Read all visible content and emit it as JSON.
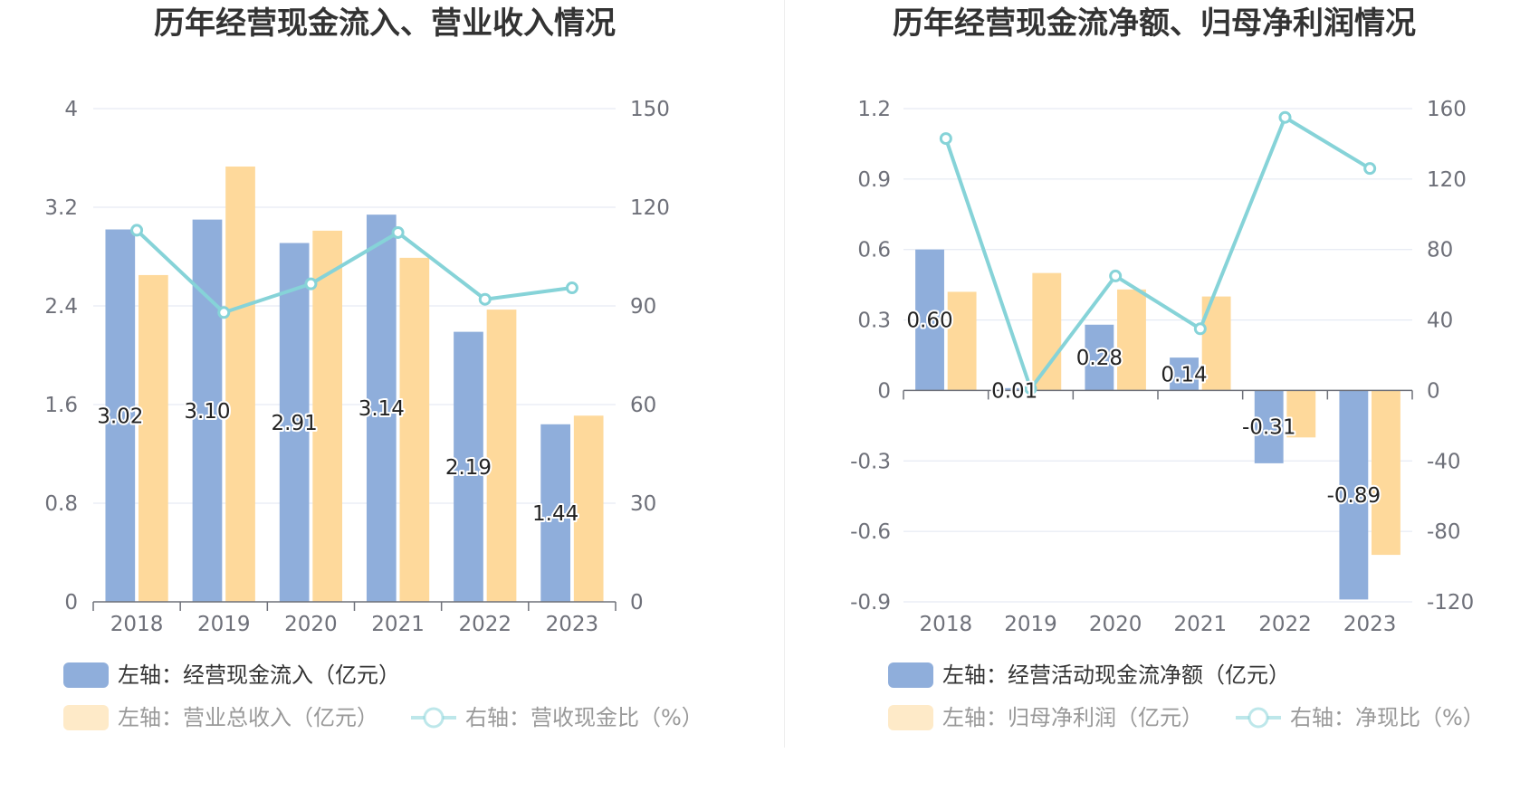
{
  "chart_data": [
    {
      "type": "bar",
      "title": "历年经营现金流入、营业收入情况",
      "categories": [
        "2018",
        "2019",
        "2020",
        "2021",
        "2022",
        "2023"
      ],
      "left_axis": {
        "ylim": [
          0,
          4
        ],
        "ticks": [
          "0",
          "0.8",
          "1.6",
          "2.4",
          "3.2",
          "4"
        ],
        "tick_values": [
          0,
          0.8,
          1.6,
          2.4,
          3.2,
          4
        ]
      },
      "right_axis": {
        "ylim": [
          0,
          150
        ],
        "ticks": [
          "0",
          "30",
          "60",
          "90",
          "120",
          "150"
        ],
        "tick_values": [
          0,
          30,
          60,
          90,
          120,
          150
        ]
      },
      "grid": true,
      "legend_position": "bottom",
      "series": [
        {
          "name": "左轴：经营现金流入（亿元）",
          "type": "bar",
          "axis": "left",
          "color": "#8faedb",
          "values": [
            3.02,
            3.1,
            2.91,
            3.14,
            2.19,
            1.44
          ],
          "labels": [
            "3.02",
            "3.10",
            "2.91",
            "3.14",
            "2.19",
            "1.44"
          ]
        },
        {
          "name": "左轴：营业总收入（亿元）",
          "type": "bar",
          "axis": "left",
          "color": "#fed99b",
          "values": [
            2.65,
            3.53,
            3.01,
            2.79,
            2.37,
            1.51
          ],
          "labels": null
        },
        {
          "name": "右轴：营收现金比（%）",
          "type": "line",
          "axis": "right",
          "color": "#86d3d8",
          "values": [
            113.0,
            88.0,
            96.7,
            112.3,
            92.0,
            95.5
          ],
          "labels": null
        }
      ]
    },
    {
      "type": "bar",
      "title": "历年经营现金流净额、归母净利润情况",
      "categories": [
        "2018",
        "2019",
        "2020",
        "2021",
        "2022",
        "2023"
      ],
      "left_axis": {
        "ylim": [
          -0.9,
          1.2
        ],
        "ticks": [
          "-0.9",
          "-0.6",
          "-0.3",
          "0",
          "0.3",
          "0.6",
          "0.9",
          "1.2"
        ],
        "tick_values": [
          -0.9,
          -0.6,
          -0.3,
          0,
          0.3,
          0.6,
          0.9,
          1.2
        ]
      },
      "right_axis": {
        "ylim": [
          -120,
          160
        ],
        "ticks": [
          "-120",
          "-80",
          "-40",
          "0",
          "40",
          "80",
          "120",
          "160"
        ],
        "tick_values": [
          -120,
          -80,
          -40,
          0,
          40,
          80,
          120,
          160
        ]
      },
      "grid": true,
      "legend_position": "bottom",
      "series": [
        {
          "name": "左轴：经营活动现金流净额（亿元）",
          "type": "bar",
          "axis": "left",
          "color": "#8faedb",
          "values": [
            0.6,
            0.01,
            0.28,
            0.14,
            -0.31,
            -0.89
          ],
          "labels": [
            "0.60",
            "0.01",
            "0.28",
            "0.14",
            "-0.31",
            "-0.89"
          ]
        },
        {
          "name": "左轴：归母净利润（亿元）",
          "type": "bar",
          "axis": "left",
          "color": "#fed99b",
          "values": [
            0.42,
            0.5,
            0.43,
            0.4,
            -0.2,
            -0.7
          ],
          "labels": null
        },
        {
          "name": "右轴：净现比（%）",
          "type": "line",
          "axis": "right",
          "color": "#86d3d8",
          "values": [
            143.0,
            1.0,
            65.0,
            35.0,
            155.0,
            126.0
          ],
          "labels": null
        }
      ]
    }
  ]
}
